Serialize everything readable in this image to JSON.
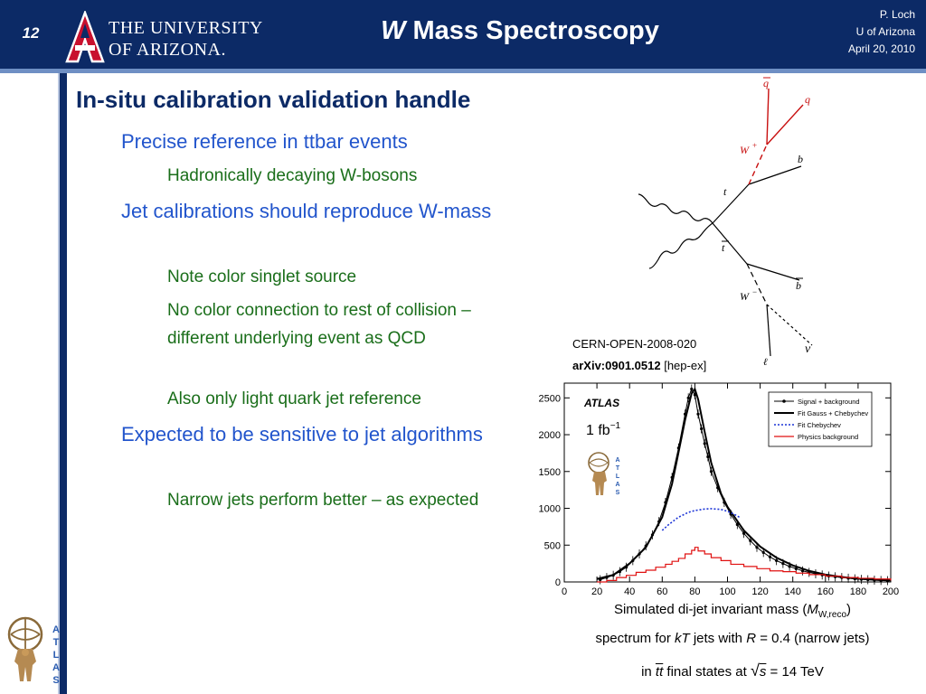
{
  "header": {
    "slide_number": "12",
    "university_line1": "THE UNIVERSITY",
    "university_line2": "OF ARIZONA.",
    "title_italic": "W",
    "title_rest": " Mass Spectroscopy",
    "author": "P. Loch",
    "affiliation": "U of Arizona",
    "date": "April 20, 2010",
    "colors": {
      "navy": "#0c2a66",
      "accent_line": "#6f8fc4"
    }
  },
  "bullets": {
    "heading": "In-situ calibration validation handle",
    "b1": "Precise reference in ttbar events",
    "b1a": "Hadronically decaying W-bosons",
    "b2": "Jet calibrations should reproduce W-mass",
    "b2a": "Note color singlet source",
    "b2b": "No color connection to rest of collision – different underlying event as QCD",
    "b2c": "Also only light quark jet reference",
    "b3": "Expected to be sensitive to jet algorithms",
    "b3a": "Narrow jets perform better – as expected"
  },
  "diagram": {
    "labels": {
      "qbar": "q",
      "q": "q",
      "wplus": "W",
      "b": "b",
      "t": "t",
      "tbar": "t",
      "bbar": "b",
      "wminus": "W",
      "nu": "ν",
      "lepton": "ℓ"
    }
  },
  "citation": {
    "line1": "CERN-OPEN-2008-020",
    "arxiv": "arXiv:0901.0512",
    "category": " [hep-ex]"
  },
  "chart_data": {
    "type": "line",
    "xlim": [
      0,
      200
    ],
    "ylim": [
      0,
      2700
    ],
    "x_ticks": [
      "0",
      "20",
      "40",
      "60",
      "80",
      "100",
      "120",
      "140",
      "160",
      "180",
      "200"
    ],
    "y_ticks": [
      "0",
      "500",
      "1000",
      "1500",
      "2000",
      "2500"
    ],
    "label_atlas": "ATLAS",
    "label_lumi": "1 fb",
    "label_lumi_sup": "−1",
    "legend_position": "top-right",
    "series": [
      {
        "name": "Signal + background",
        "color": "#000000",
        "x": [
          22,
          26,
          30,
          34,
          38,
          42,
          46,
          50,
          54,
          58,
          62,
          66,
          70,
          74,
          76,
          78,
          80,
          82,
          84,
          86,
          88,
          90,
          94,
          98,
          102,
          106,
          110,
          114,
          118,
          122,
          126,
          130,
          134,
          138,
          142,
          146,
          150,
          154,
          158,
          162,
          166,
          170,
          174,
          178,
          182,
          186,
          190,
          194,
          198
        ],
        "values": [
          30,
          60,
          90,
          140,
          200,
          290,
          380,
          490,
          640,
          820,
          1080,
          1420,
          1820,
          2280,
          2500,
          2620,
          2540,
          2280,
          2080,
          1880,
          1700,
          1500,
          1280,
          1080,
          920,
          780,
          660,
          560,
          470,
          400,
          340,
          290,
          250,
          210,
          180,
          150,
          130,
          110,
          95,
          80,
          70,
          60,
          50,
          42,
          35,
          30,
          25,
          20,
          18
        ]
      },
      {
        "name": "Fit Gauss + Chebychev",
        "color": "#000000",
        "x": [
          20,
          30,
          40,
          50,
          60,
          66,
          70,
          74,
          78,
          80,
          82,
          86,
          90,
          96,
          100,
          110,
          120,
          130,
          140,
          150,
          160,
          170,
          180,
          190,
          200
        ],
        "values": [
          40,
          95,
          250,
          470,
          880,
          1330,
          1760,
          2200,
          2560,
          2620,
          2480,
          2040,
          1620,
          1200,
          1020,
          700,
          480,
          330,
          225,
          150,
          100,
          68,
          45,
          30,
          20
        ]
      },
      {
        "name": "Fit Chebychev",
        "color": "#1a33d6",
        "x": [
          60,
          64,
          70,
          76,
          80,
          86,
          90,
          96,
          100,
          104,
          108
        ],
        "values": [
          700,
          780,
          880,
          945,
          970,
          990,
          995,
          985,
          960,
          920,
          870
        ]
      },
      {
        "name": "Physics background",
        "color": "#e01010",
        "x": [
          20,
          26,
          32,
          38,
          44,
          50,
          56,
          62,
          66,
          70,
          74,
          78,
          80,
          82,
          86,
          90,
          96,
          102,
          110,
          118,
          126,
          134,
          142,
          150,
          160,
          170,
          180,
          190,
          200
        ],
        "values": [
          0,
          20,
          60,
          90,
          130,
          160,
          200,
          240,
          280,
          320,
          380,
          430,
          470,
          420,
          380,
          330,
          290,
          240,
          210,
          180,
          150,
          140,
          120,
          100,
          80,
          60,
          50,
          40,
          20
        ]
      }
    ]
  },
  "caption": {
    "line1_pre": "Simulated di-jet invariant mass (",
    "line1_m": "M",
    "line1_sub": "W,reco",
    "line1_post": ")",
    "line2_pre": "spectrum for ",
    "line2_kt": "kT",
    "line2_mid": "  jets with ",
    "line2_r": "R",
    "line2_post": " = 0.4 (narrow jets)",
    "line3_pre": "in ",
    "line3_tt": "tt",
    "line3_mid": "  final states at ",
    "line3_s": "s",
    "line3_post": " = 14 TeV"
  }
}
